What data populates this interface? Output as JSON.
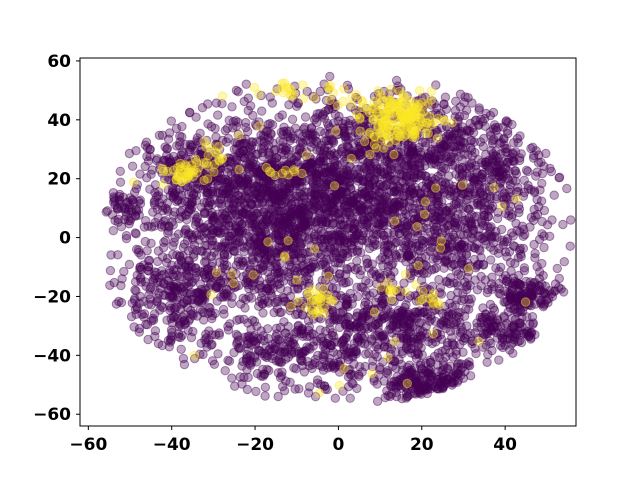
{
  "chart_data": {
    "type": "scatter",
    "title": "",
    "xlabel": "",
    "ylabel": "",
    "xlim": [
      -62,
      57
    ],
    "ylim": [
      -64,
      61
    ],
    "xticks": [
      -60,
      -40,
      -20,
      0,
      20,
      40
    ],
    "yticks": [
      -60,
      -40,
      -20,
      0,
      20,
      40,
      60
    ],
    "tick_labels_x": [
      "−60",
      "−40",
      "−20",
      "0",
      "20",
      "40"
    ],
    "tick_labels_y": [
      "−60",
      "−40",
      "−20",
      "0",
      "20",
      "40",
      "60"
    ],
    "grid": false,
    "legend": "none",
    "marker_alpha": 0.35,
    "series": [
      {
        "color": "#440154",
        "point_count_estimate": 5000,
        "clusters": [
          {
            "cx": -15,
            "cy": 5,
            "sx": 15,
            "sy": 18,
            "n": 1600
          },
          {
            "cx": 5,
            "cy": 20,
            "sx": 14,
            "sy": 14,
            "n": 900
          },
          {
            "cx": 15,
            "cy": -30,
            "sx": 9,
            "sy": 7,
            "n": 350
          },
          {
            "cx": 22,
            "cy": -50,
            "sx": 7,
            "sy": 4,
            "n": 300
          },
          {
            "cx": 45,
            "cy": -20,
            "sx": 4,
            "sy": 3,
            "n": 120
          },
          {
            "cx": 40,
            "cy": -32,
            "sx": 5,
            "sy": 4,
            "n": 120
          },
          {
            "cx": 30,
            "cy": 0,
            "sx": 10,
            "sy": 12,
            "n": 500
          },
          {
            "cx": -40,
            "cy": -20,
            "sx": 7,
            "sy": 9,
            "n": 250
          },
          {
            "cx": -52,
            "cy": 10,
            "sx": 2,
            "sy": 2,
            "n": 40
          },
          {
            "cx": -35,
            "cy": 20,
            "sx": 8,
            "sy": 10,
            "n": 250
          },
          {
            "cx": 25,
            "cy": 35,
            "sx": 10,
            "sy": 8,
            "n": 250
          },
          {
            "cx": -10,
            "cy": -40,
            "sx": 12,
            "sy": 7,
            "n": 300
          },
          {
            "cx": 40,
            "cy": 25,
            "sx": 6,
            "sy": 8,
            "n": 150
          }
        ]
      },
      {
        "color": "#fde725",
        "point_count_estimate": 450,
        "clusters": [
          {
            "cx": 15,
            "cy": 40,
            "sx": 5,
            "sy": 4,
            "n": 180
          },
          {
            "cx": -38,
            "cy": 22,
            "sx": 3,
            "sy": 2,
            "n": 40
          },
          {
            "cx": -30,
            "cy": 28,
            "sx": 2,
            "sy": 2,
            "n": 15
          },
          {
            "cx": -5,
            "cy": -22,
            "sx": 2,
            "sy": 2.5,
            "n": 25
          },
          {
            "cx": -12,
            "cy": 50,
            "sx": 3,
            "sy": 2,
            "n": 15
          },
          {
            "cx": 2,
            "cy": 50,
            "sx": 3,
            "sy": 2,
            "n": 12
          },
          {
            "cx": 22,
            "cy": -20,
            "sx": 2,
            "sy": 1.5,
            "n": 10
          },
          {
            "cx": 12,
            "cy": -18,
            "sx": 2,
            "sy": 1.5,
            "n": 8
          },
          {
            "cx": -14,
            "cy": 22,
            "sx": 2,
            "sy": 2,
            "n": 10
          },
          {
            "cx": 0,
            "cy": 0,
            "sx": 25,
            "sy": 30,
            "n": 60
          }
        ]
      }
    ]
  }
}
